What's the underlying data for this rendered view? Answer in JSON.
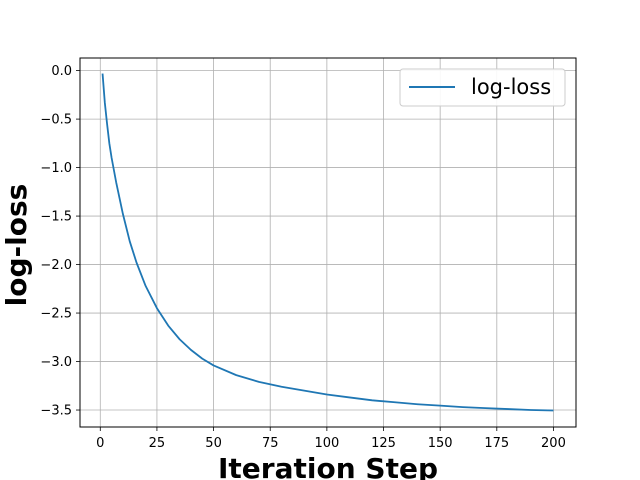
{
  "chart_data": {
    "type": "line",
    "title": "",
    "xlabel": "Iteration Step",
    "ylabel": "log-loss",
    "xlim": [
      -8.95,
      209.95
    ],
    "ylim": [
      -3.675,
      0.13
    ],
    "grid": true,
    "legend": {
      "placement": "top-right"
    },
    "x_ticks": [
      0,
      25,
      50,
      75,
      100,
      125,
      150,
      175,
      200
    ],
    "x_tick_labels": [
      "0",
      "25",
      "50",
      "75",
      "100",
      "125",
      "150",
      "175",
      "200"
    ],
    "y_ticks": [
      0.0,
      -0.5,
      -1.0,
      -1.5,
      -2.0,
      -2.5,
      -3.0,
      -3.5
    ],
    "y_tick_labels": [
      "0.0",
      "−0.5",
      "−1.0",
      "−1.5",
      "−2.0",
      "−2.5",
      "−3.0",
      "−3.5"
    ],
    "series": [
      {
        "name": "log-loss",
        "color": "#1f77b4",
        "x": [
          1,
          2,
          3,
          4,
          5,
          7,
          10,
          13,
          16,
          20,
          25,
          30,
          35,
          40,
          45,
          50,
          60,
          70,
          80,
          90,
          100,
          110,
          120,
          130,
          140,
          150,
          160,
          170,
          180,
          190,
          200
        ],
        "y": [
          -0.03,
          -0.33,
          -0.55,
          -0.75,
          -0.9,
          -1.15,
          -1.48,
          -1.76,
          -1.98,
          -2.22,
          -2.45,
          -2.63,
          -2.77,
          -2.88,
          -2.97,
          -3.04,
          -3.14,
          -3.21,
          -3.26,
          -3.3,
          -3.34,
          -3.37,
          -3.4,
          -3.42,
          -3.44,
          -3.455,
          -3.47,
          -3.48,
          -3.49,
          -3.5,
          -3.505
        ]
      }
    ]
  }
}
